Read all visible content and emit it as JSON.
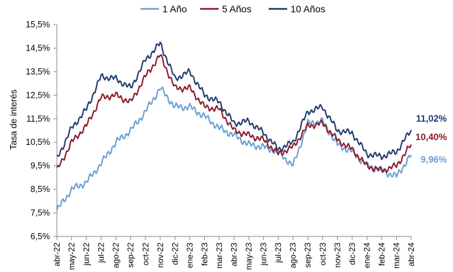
{
  "chart_data": {
    "type": "line",
    "ylabel": "Tasa de interés",
    "xlabel": "",
    "title": "",
    "ylim": [
      6.5,
      15.5
    ],
    "yticks": [
      "6,5%",
      "7,5%",
      "8,5%",
      "9,5%",
      "10,5%",
      "11,5%",
      "12,5%",
      "13,5%",
      "14,5%",
      "15,5%"
    ],
    "ytick_values": [
      6.5,
      7.5,
      8.5,
      9.5,
      10.5,
      11.5,
      12.5,
      13.5,
      14.5,
      15.5
    ],
    "categories": [
      "abr-22",
      "may-22",
      "jun-22",
      "jul-22",
      "ago-22",
      "sep-22",
      "oct-22",
      "nov-22",
      "dic-22",
      "ene-23",
      "feb-23",
      "mar-23",
      "abr-23",
      "may-23",
      "jun-23",
      "jul-23",
      "ago-23",
      "sep-23",
      "oct-23",
      "nov-23",
      "dic-23",
      "ene-24",
      "feb-24",
      "mar-24",
      "abr-24"
    ],
    "legend_position": "top-center",
    "grid": false,
    "series": [
      {
        "name": "1 Año",
        "color": "#6A9FD4",
        "end_label": "9,96%",
        "values": [
          7.6,
          8.5,
          8.8,
          9.6,
          10.5,
          11.0,
          11.8,
          12.8,
          12.0,
          12.0,
          11.6,
          11.1,
          10.8,
          10.4,
          10.3,
          10.1,
          9.5,
          11.3,
          11.4,
          10.4,
          10.1,
          9.5,
          9.3,
          9.05,
          9.96
        ]
      },
      {
        "name": "5 Años",
        "color": "#8B1A2B",
        "end_label": "10,40%",
        "values": [
          9.3,
          10.5,
          11.2,
          12.4,
          12.5,
          12.2,
          13.3,
          14.2,
          12.8,
          12.8,
          12.0,
          11.9,
          11.0,
          10.8,
          10.6,
          10.0,
          10.3,
          11.2,
          11.3,
          10.6,
          10.2,
          9.5,
          9.3,
          9.5,
          10.4
        ]
      },
      {
        "name": "10 Años",
        "color": "#1F3A70",
        "end_label": "11,02%",
        "values": [
          9.8,
          11.1,
          11.9,
          13.3,
          13.2,
          12.8,
          14.0,
          14.7,
          13.2,
          13.5,
          12.5,
          12.2,
          11.3,
          11.4,
          10.9,
          10.2,
          10.5,
          11.8,
          12.0,
          11.0,
          10.9,
          10.0,
          9.9,
          10.1,
          11.02
        ]
      }
    ]
  }
}
